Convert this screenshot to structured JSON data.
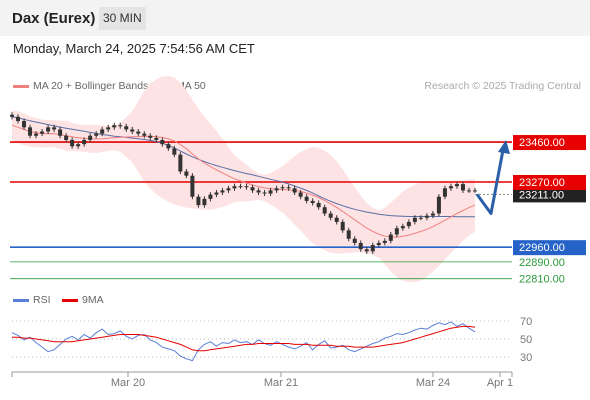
{
  "header": {
    "instrument": "Dax (Eurex)",
    "timeframe": "30 MIN"
  },
  "datetime": "Monday, March 24, 2025 7:54:56 AM CET",
  "legend": {
    "ma20_label": "MA 20 + Bollinger Bands",
    "ma50_label": "MA 50",
    "credit": "Research © 2025 Trading Central"
  },
  "rsi_legend": {
    "rsi_label": "RSI",
    "ma_label": "9MA"
  },
  "colors": {
    "price": "#333333",
    "ma20": "#f08080",
    "ma50": "#5a6ea8",
    "bands": "#fde3e3",
    "resistance": "#e60000",
    "support": "#2563c8",
    "target": "#2a9a3a",
    "rsi": "#5a7fd8",
    "rsi_ma": "#e60000",
    "arrow": "#2a5fa8"
  },
  "chart_data": [
    {
      "type": "line",
      "name": "price",
      "x_ticks": [
        "Mar 20",
        "Mar 21",
        "Mar 24",
        "Apr 1"
      ],
      "ylim": [
        22780,
        23660
      ],
      "current_price": "23211.00",
      "levels": [
        {
          "label": "23460.00",
          "value": 23460,
          "kind": "resistance"
        },
        {
          "label": "23270.00",
          "value": 23270,
          "kind": "resistance"
        },
        {
          "label": "22960.00",
          "value": 22960,
          "kind": "support"
        },
        {
          "label": "22890.00",
          "value": 22890,
          "kind": "target"
        },
        {
          "label": "22810.00",
          "value": 22810,
          "kind": "target"
        }
      ],
      "series": [
        {
          "values": [
            23580,
            23560,
            23530,
            23490,
            23500,
            23510,
            23530,
            23520,
            23490,
            23470,
            23440,
            23450,
            23470,
            23490,
            23500,
            23520,
            23530,
            23540,
            23535,
            23520,
            23510,
            23500,
            23490,
            23480,
            23470,
            23450,
            23430,
            23400,
            23320,
            23300,
            23200,
            23160,
            23190,
            23210,
            23220,
            23230,
            23240,
            23250,
            23250,
            23245,
            23230,
            23220,
            23215,
            23230,
            23240,
            23245,
            23240,
            23220,
            23200,
            23180,
            23170,
            23150,
            23120,
            23100,
            23080,
            23040,
            23000,
            22980,
            22950,
            22940,
            22970,
            22980,
            22990,
            23020,
            23050,
            23060,
            23080,
            23100,
            23100,
            23110,
            23120,
            23200,
            23240,
            23250,
            23260,
            23230,
            23230,
            23230
          ]
        },
        {
          "name": "MA 20",
          "values": [
            23540,
            23530,
            23520,
            23510,
            23505,
            23500,
            23500,
            23500,
            23495,
            23490,
            23485,
            23480,
            23478,
            23476,
            23475,
            23476,
            23478,
            23480,
            23482,
            23484,
            23485,
            23486,
            23487,
            23488,
            23486,
            23482,
            23475,
            23465,
            23448,
            23428,
            23403,
            23380,
            23360,
            23343,
            23328,
            23313,
            23298,
            23285,
            23275,
            23265,
            23255,
            23248,
            23242,
            23238,
            23236,
            23234,
            23233,
            23230,
            23225,
            23217,
            23208,
            23196,
            23182,
            23166,
            23149,
            23130,
            23110,
            23090,
            23070,
            23050,
            23035,
            23022,
            23012,
            23008,
            23008,
            23012,
            23018,
            23026,
            23035,
            23045,
            23058,
            23072,
            23088,
            23104,
            23120,
            23135,
            23148,
            23160
          ]
        },
        {
          "name": "MA 50",
          "values": [
            23580,
            23575,
            23568,
            23561,
            23555,
            23549,
            23543,
            23537,
            23531,
            23526,
            23521,
            23516,
            23511,
            23506,
            23501,
            23496,
            23492,
            23488,
            23485,
            23482,
            23479,
            23476,
            23472,
            23468,
            23462,
            23454,
            23444,
            23432,
            23417,
            23403,
            23390,
            23378,
            23367,
            23357,
            23348,
            23340,
            23332,
            23324,
            23317,
            23310,
            23304,
            23297,
            23290,
            23283,
            23276,
            23269,
            23261,
            23251,
            23241,
            23230,
            23218,
            23204,
            23190,
            23178,
            23167,
            23157,
            23148,
            23140,
            23133,
            23127,
            23122,
            23117,
            23113,
            23110,
            23108,
            23107,
            23106,
            23106,
            23106,
            23106,
            23106,
            23106,
            23106,
            23106,
            23105,
            23105,
            23105,
            23105
          ]
        }
      ],
      "projection": [
        23211,
        23120,
        23460
      ]
    },
    {
      "type": "line",
      "name": "RSI",
      "ylim": [
        20,
        80
      ],
      "y_ticks": [
        "70",
        "50",
        "30"
      ],
      "series": [
        {
          "name": "RSI",
          "values": [
            57,
            54,
            49,
            52,
            46,
            41,
            36,
            38,
            44,
            50,
            53,
            49,
            55,
            51,
            57,
            61,
            55,
            56,
            59,
            53,
            50,
            54,
            55,
            49,
            46,
            41,
            39,
            37,
            31,
            28,
            26,
            38,
            44,
            47,
            42,
            46,
            45,
            49,
            46,
            47,
            44,
            49,
            45,
            43,
            47,
            44,
            41,
            39,
            42,
            46,
            38,
            44,
            48,
            40,
            41,
            43,
            38,
            36,
            39,
            42,
            45,
            47,
            51,
            53,
            56,
            55,
            57,
            60,
            62,
            61,
            65,
            68,
            66,
            69,
            64,
            67,
            62,
            58
          ]
        },
        {
          "name": "9MA",
          "values": [
            52,
            52,
            51,
            51,
            50,
            49,
            48,
            47,
            47,
            47,
            47,
            48,
            49,
            50,
            51,
            52,
            53,
            54,
            55,
            55,
            55,
            55,
            54,
            53,
            52,
            50,
            48,
            46,
            44,
            41,
            38,
            37,
            37,
            38,
            39,
            40,
            41,
            42,
            43,
            44,
            44,
            45,
            45,
            45,
            45,
            45,
            45,
            44,
            44,
            44,
            43,
            43,
            43,
            43,
            42,
            42,
            42,
            41,
            41,
            41,
            41,
            42,
            43,
            44,
            45,
            46,
            48,
            50,
            52,
            54,
            56,
            58,
            60,
            62,
            63,
            64,
            64,
            63
          ]
        }
      ]
    }
  ]
}
